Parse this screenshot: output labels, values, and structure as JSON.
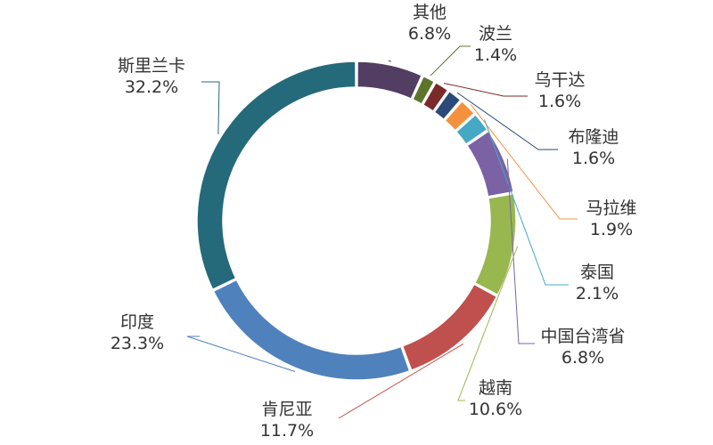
{
  "chart_data": {
    "type": "pie",
    "subtype": "donut",
    "title": "",
    "slices": [
      {
        "name": "其他",
        "value": 6.8,
        "label": "6.8%",
        "color": "#523e62"
      },
      {
        "name": "波兰",
        "value": 1.4,
        "label": "1.4%",
        "color": "#5c752b"
      },
      {
        "name": "乌干达",
        "value": 1.6,
        "label": "1.6%",
        "color": "#7b2a2a"
      },
      {
        "name": "布隆迪",
        "value": 1.6,
        "label": "1.6%",
        "color": "#2b4a78"
      },
      {
        "name": "马拉维",
        "value": 1.9,
        "label": "1.9%",
        "color": "#f5913e"
      },
      {
        "name": "泰国",
        "value": 2.1,
        "label": "2.1%",
        "color": "#45a8c5"
      },
      {
        "name": "中国台湾省",
        "value": 6.8,
        "label": "6.8%",
        "color": "#7b62a5"
      },
      {
        "name": "越南",
        "value": 10.6,
        "label": "10.6%",
        "color": "#98b74f"
      },
      {
        "name": "肯尼亚",
        "value": 11.7,
        "label": "11.7%",
        "color": "#c0504d"
      },
      {
        "name": "印度",
        "value": 23.3,
        "label": "23.3%",
        "color": "#4f81bd"
      },
      {
        "name": "斯里兰卡",
        "value": 32.2,
        "label": "32.2%",
        "color": "#246a7a"
      }
    ],
    "legend": "none"
  }
}
